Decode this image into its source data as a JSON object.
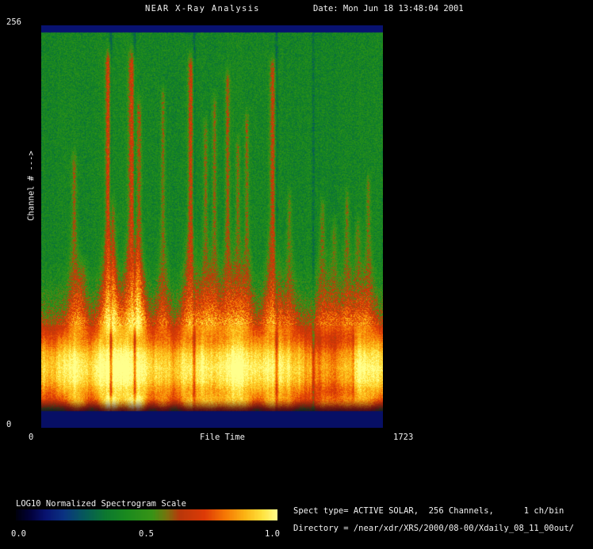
{
  "header": {
    "title": "NEAR X-Ray Analysis",
    "date": "Date: Mon Jun 18 13:48:04 2001"
  },
  "plot": {
    "y_axis_label": "Channel # --->",
    "y_max_label": "256",
    "y_min_label": "0",
    "x_min_label": "0",
    "x_axis_label": "File Time",
    "x_max_label": "1723"
  },
  "colorbar": {
    "title": "LOG10 Normalized Spectrogram Scale",
    "ticks": [
      "0.0",
      "0.5",
      "1.0"
    ]
  },
  "info": {
    "spect_type_line": "Spect type= ACTIVE SOLAR,  256 Channels,      1 ch/bin",
    "directory_line": "Directory = /near/xdr/XRS/2000/08-00/Xdaily_08_11_00out/"
  },
  "colors": {
    "background": "#000000",
    "text": "#f2f2f2"
  },
  "chart_data": {
    "type": "heatmap",
    "title": "NEAR X-Ray Analysis",
    "xlabel": "File Time",
    "ylabel": "Channel #",
    "xlim": [
      0,
      1723
    ],
    "ylim": [
      0,
      256
    ],
    "colorbar_label": "LOG10 Normalized Spectrogram Scale",
    "colorbar_range": [
      0.0,
      1.0
    ],
    "description": "Normalized X-ray spectrogram: green background at low intensity, bright yellow-orange emission band in low channels, vertical red flare streaks at burst times, dark blue bands at the lowest and highest channel edges",
    "colormap_stops": [
      [
        0.0,
        [
          0,
          0,
          14
        ]
      ],
      [
        0.055,
        [
          2,
          2,
          60
        ]
      ],
      [
        0.11,
        [
          8,
          18,
          112
        ]
      ],
      [
        0.18,
        [
          10,
          50,
          130
        ]
      ],
      [
        0.26,
        [
          6,
          90,
          90
        ]
      ],
      [
        0.34,
        [
          12,
          120,
          48
        ]
      ],
      [
        0.42,
        [
          26,
          138,
          30
        ]
      ],
      [
        0.52,
        [
          56,
          148,
          22
        ]
      ],
      [
        0.575,
        [
          120,
          115,
          14
        ]
      ],
      [
        0.625,
        [
          185,
          55,
          10
        ]
      ],
      [
        0.72,
        [
          222,
          58,
          6
        ]
      ],
      [
        0.8,
        [
          246,
          120,
          4
        ]
      ],
      [
        0.875,
        [
          252,
          180,
          20
        ]
      ],
      [
        0.94,
        [
          255,
          225,
          60
        ]
      ],
      [
        1.0,
        [
          255,
          255,
          140
        ]
      ]
    ],
    "intensity_profile": [
      [
        0.0,
        0.11
      ],
      [
        0.016,
        0.11
      ],
      [
        0.017,
        0.4
      ],
      [
        0.58,
        0.4
      ],
      [
        0.645,
        0.44
      ],
      [
        0.7,
        0.52
      ],
      [
        0.745,
        0.64
      ],
      [
        0.78,
        0.76
      ],
      [
        0.815,
        0.88
      ],
      [
        0.85,
        0.93
      ],
      [
        0.88,
        0.9
      ],
      [
        0.905,
        0.82
      ],
      [
        0.925,
        0.74
      ],
      [
        0.945,
        0.62
      ],
      [
        0.957,
        0.5
      ],
      [
        0.958,
        0.1
      ],
      [
        1.0,
        0.1
      ]
    ],
    "flares": [
      {
        "file_time": 164,
        "intensity": 0.6,
        "reach": 0.72,
        "width": 9
      },
      {
        "file_time": 205,
        "intensity": 0.45,
        "reach": 0.45,
        "width": 8
      },
      {
        "file_time": 336,
        "intensity": 0.95,
        "reach": 0.97,
        "width": 11
      },
      {
        "file_time": 360,
        "intensity": 0.55,
        "reach": 0.6,
        "width": 8
      },
      {
        "file_time": 455,
        "intensity": 0.95,
        "reach": 0.97,
        "width": 13
      },
      {
        "file_time": 492,
        "intensity": 0.7,
        "reach": 0.85,
        "width": 9
      },
      {
        "file_time": 612,
        "intensity": 0.6,
        "reach": 0.88,
        "width": 8
      },
      {
        "file_time": 752,
        "intensity": 0.9,
        "reach": 0.96,
        "width": 11
      },
      {
        "file_time": 827,
        "intensity": 0.6,
        "reach": 0.8,
        "width": 8
      },
      {
        "file_time": 872,
        "intensity": 0.65,
        "reach": 0.86,
        "width": 8
      },
      {
        "file_time": 938,
        "intensity": 0.7,
        "reach": 0.92,
        "width": 9
      },
      {
        "file_time": 990,
        "intensity": 0.55,
        "reach": 0.75,
        "width": 8
      },
      {
        "file_time": 1035,
        "intensity": 0.6,
        "reach": 0.82,
        "width": 8
      },
      {
        "file_time": 1165,
        "intensity": 0.85,
        "reach": 0.95,
        "width": 11
      },
      {
        "file_time": 1250,
        "intensity": 0.5,
        "reach": 0.62,
        "width": 8
      },
      {
        "file_time": 1415,
        "intensity": 0.55,
        "reach": 0.6,
        "width": 9
      },
      {
        "file_time": 1475,
        "intensity": 0.5,
        "reach": 0.55,
        "width": 8
      },
      {
        "file_time": 1540,
        "intensity": 0.55,
        "reach": 0.62,
        "width": 8
      },
      {
        "file_time": 1595,
        "intensity": 0.5,
        "reach": 0.55,
        "width": 8
      },
      {
        "file_time": 1648,
        "intensity": 0.55,
        "reach": 0.66,
        "width": 8
      }
    ],
    "gaps": [
      {
        "file_time": 350,
        "depth": 0.5
      },
      {
        "file_time": 470,
        "depth": 0.45
      },
      {
        "file_time": 770,
        "depth": 0.4
      },
      {
        "file_time": 1185,
        "depth": 0.45
      },
      {
        "file_time": 1370,
        "depth": 0.35
      }
    ],
    "dim_regions": [
      {
        "from": 0.77,
        "to": 0.915,
        "amount": 0.09
      }
    ]
  }
}
